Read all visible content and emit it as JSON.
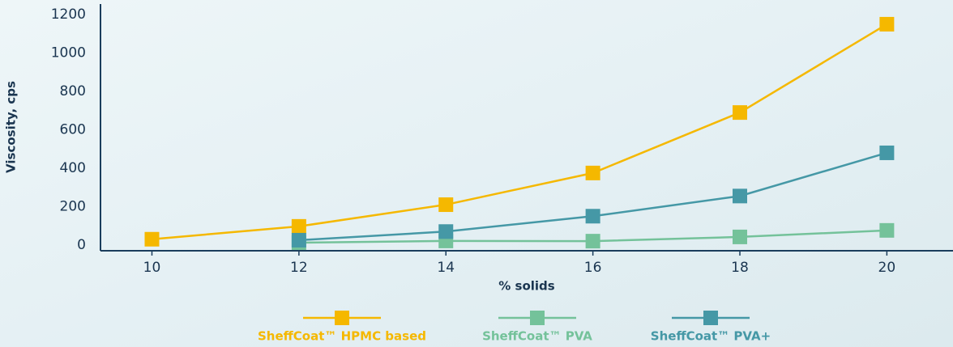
{
  "chart_data": {
    "type": "line",
    "xlabel": "% solids",
    "ylabel": "Viscosity, cps",
    "x": [
      10,
      12,
      14,
      16,
      18,
      20
    ],
    "series": [
      {
        "name": "SheffCoat™ HPMC based",
        "color": "#f5b800",
        "values": [
          30,
          97,
          210,
          375,
          690,
          1150
        ]
      },
      {
        "name": "SheffCoat™ PVA",
        "color": "#74c29a",
        "values": [
          null,
          12,
          21,
          20,
          42,
          76
        ]
      },
      {
        "name": "SheffCoat™ PVA+",
        "color": "#4598a6",
        "values": [
          null,
          25,
          70,
          150,
          255,
          480
        ]
      }
    ],
    "xlim": [
      9.3,
      20.9
    ],
    "xticks": [
      10,
      12,
      14,
      16,
      18,
      20
    ],
    "ylim": [
      -30,
      1255
    ],
    "yticks": [
      0,
      200,
      400,
      600,
      800,
      1000,
      1200
    ],
    "legend": "bottom"
  }
}
